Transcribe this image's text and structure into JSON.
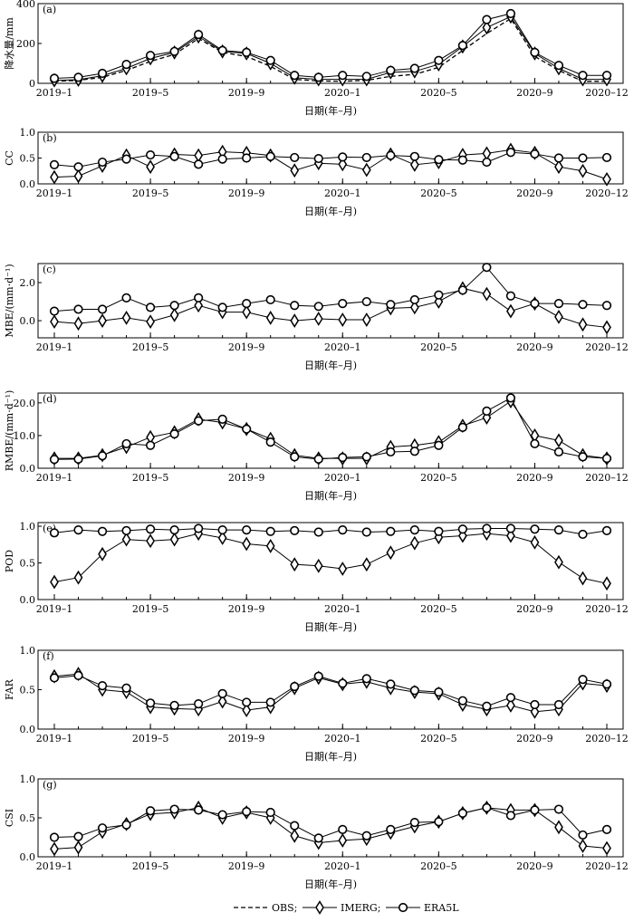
{
  "chart_data": {
    "type": "line",
    "x": [
      "2019-1",
      "2019-2",
      "2019-3",
      "2019-4",
      "2019-5",
      "2019-6",
      "2019-7",
      "2019-8",
      "2019-9",
      "2019-10",
      "2019-11",
      "2019-12",
      "2020-1",
      "2020-2",
      "2020-3",
      "2020-4",
      "2020-5",
      "2020-6",
      "2020-7",
      "2020-8",
      "2020-9",
      "2020-10",
      "2020-11",
      "2020-12"
    ],
    "x_tick_labels": [
      "2019–1",
      "2019–5",
      "2019–9",
      "2020–1",
      "2020–5",
      "2020–9",
      "2020–12"
    ],
    "legend": [
      "OBS;",
      "IMERG;",
      "ERA5L"
    ],
    "panels": [
      {
        "label": "(a)",
        "ylabel": "降水量/mm",
        "xlabel": "日期(年–月)",
        "ylim": [
          0,
          400
        ],
        "yticks": [
          "0",
          "200",
          "400"
        ],
        "series": [
          {
            "values": [
              10,
              15,
              30,
              65,
              110,
              145,
              225,
              155,
              135,
              85,
              20,
              12,
              10,
              15,
              35,
              45,
              80,
              165,
              250,
              325,
              135,
              65,
              10,
              10
            ]
          },
          {
            "values": [
              15,
              18,
              38,
              75,
              125,
              155,
              235,
              160,
              150,
              100,
              28,
              20,
              20,
              20,
              55,
              60,
              95,
              185,
              280,
              335,
              150,
              75,
              20,
              20
            ]
          },
          {
            "values": [
              25,
              30,
              50,
              95,
              140,
              160,
              245,
              165,
              155,
              115,
              40,
              30,
              40,
              35,
              65,
              75,
              115,
              190,
              320,
              350,
              155,
              90,
              40,
              40
            ]
          }
        ]
      },
      {
        "label": "(b)",
        "ylabel": "CC",
        "xlabel": "日期(年–月)",
        "ylim": [
          0,
          1.0
        ],
        "yticks": [
          "0.0",
          "0.5",
          "1.0"
        ],
        "series": [
          {
            "values": []
          },
          {
            "values": [
              0.13,
              0.15,
              0.35,
              0.55,
              0.33,
              0.57,
              0.55,
              0.62,
              0.6,
              0.55,
              0.26,
              0.4,
              0.38,
              0.27,
              0.57,
              0.37,
              0.42,
              0.56,
              0.59,
              0.66,
              0.6,
              0.33,
              0.25,
              0.09
            ]
          },
          {
            "values": [
              0.37,
              0.33,
              0.42,
              0.48,
              0.56,
              0.53,
              0.38,
              0.48,
              0.5,
              0.53,
              0.51,
              0.49,
              0.52,
              0.51,
              0.55,
              0.53,
              0.47,
              0.46,
              0.42,
              0.61,
              0.58,
              0.5,
              0.5,
              0.51
            ]
          }
        ]
      },
      {
        "label": "(c)",
        "ylabel": "MBE/(mm·d⁻¹)",
        "xlabel": "日期(年–月)",
        "ylim": [
          -0.9,
          3.0
        ],
        "yticks": [
          "0.0",
          "2.0"
        ],
        "series": [
          {
            "values": []
          },
          {
            "values": [
              -0.05,
              -0.15,
              0.0,
              0.15,
              -0.05,
              0.3,
              0.8,
              0.45,
              0.45,
              0.15,
              0.0,
              0.1,
              0.05,
              0.05,
              0.65,
              0.7,
              1.0,
              1.7,
              1.4,
              0.5,
              0.9,
              0.2,
              -0.2,
              -0.35
            ]
          },
          {
            "values": [
              0.5,
              0.6,
              0.6,
              1.2,
              0.7,
              0.8,
              1.2,
              0.7,
              0.9,
              1.1,
              0.8,
              0.75,
              0.9,
              1.0,
              0.85,
              1.1,
              1.35,
              1.6,
              2.8,
              1.3,
              0.9,
              0.9,
              0.85,
              0.8
            ]
          }
        ]
      },
      {
        "label": "(d)",
        "ylabel": "RMBE/(mm·d⁻¹)",
        "xlabel": "日期(年–月)",
        "ylim": [
          0,
          23
        ],
        "yticks": [
          "0.0",
          "10.0",
          "20.0"
        ],
        "series": [
          {
            "values": []
          },
          {
            "values": [
              3.0,
              3.0,
              4.0,
              6.5,
              9.5,
              11.0,
              15.0,
              14.0,
              12.0,
              9.0,
              4.0,
              3.0,
              3.0,
              3.0,
              6.5,
              7.0,
              8.0,
              13.0,
              15.5,
              20.5,
              10.0,
              8.5,
              4.0,
              3.0
            ]
          },
          {
            "values": [
              2.7,
              2.8,
              3.8,
              7.5,
              7.0,
              10.5,
              14.5,
              15.0,
              12.0,
              8.0,
              3.5,
              2.8,
              3.3,
              3.5,
              5.0,
              5.2,
              7.0,
              12.5,
              17.5,
              21.5,
              7.5,
              5.0,
              3.5,
              3.0
            ]
          }
        ]
      },
      {
        "label": "(e)",
        "ylabel": "POD",
        "xlabel": "日期(年–月)",
        "ylim": [
          0,
          1.05
        ],
        "yticks": [
          "0.0",
          "0.5",
          "1.0"
        ],
        "series": [
          {
            "values": []
          },
          {
            "values": [
              0.24,
              0.3,
              0.62,
              0.82,
              0.8,
              0.82,
              0.9,
              0.84,
              0.76,
              0.73,
              0.48,
              0.46,
              0.42,
              0.48,
              0.64,
              0.77,
              0.85,
              0.87,
              0.9,
              0.87,
              0.78,
              0.51,
              0.29,
              0.22
            ]
          },
          {
            "values": [
              0.91,
              0.95,
              0.93,
              0.94,
              0.96,
              0.95,
              0.97,
              0.95,
              0.95,
              0.93,
              0.94,
              0.92,
              0.95,
              0.92,
              0.93,
              0.95,
              0.93,
              0.96,
              0.97,
              0.97,
              0.96,
              0.95,
              0.89,
              0.94
            ]
          }
        ]
      },
      {
        "label": "(f)",
        "ylabel": "FAR",
        "xlabel": "日期(年–月)",
        "ylim": [
          0,
          1.0
        ],
        "yticks": [
          "0.0",
          "0.5",
          "1.0"
        ],
        "series": [
          {
            "values": []
          },
          {
            "values": [
              0.67,
              0.7,
              0.5,
              0.47,
              0.28,
              0.26,
              0.25,
              0.35,
              0.24,
              0.28,
              0.52,
              0.65,
              0.57,
              0.6,
              0.52,
              0.47,
              0.45,
              0.31,
              0.25,
              0.3,
              0.22,
              0.25,
              0.58,
              0.55
            ]
          },
          {
            "values": [
              0.65,
              0.68,
              0.55,
              0.52,
              0.33,
              0.3,
              0.32,
              0.45,
              0.34,
              0.34,
              0.54,
              0.67,
              0.58,
              0.64,
              0.57,
              0.49,
              0.47,
              0.36,
              0.29,
              0.4,
              0.31,
              0.31,
              0.63,
              0.57
            ]
          }
        ]
      },
      {
        "label": "(g)",
        "ylabel": "CSI",
        "xlabel": "日期(年–月)",
        "ylim": [
          0,
          1.0
        ],
        "yticks": [
          "0.0",
          "0.5",
          "1.0"
        ],
        "series": [
          {
            "values": []
          },
          {
            "values": [
              0.1,
              0.12,
              0.32,
              0.42,
              0.55,
              0.57,
              0.63,
              0.5,
              0.57,
              0.5,
              0.27,
              0.18,
              0.21,
              0.23,
              0.31,
              0.39,
              0.45,
              0.56,
              0.63,
              0.6,
              0.6,
              0.38,
              0.14,
              0.11
            ]
          },
          {
            "values": [
              0.25,
              0.26,
              0.37,
              0.41,
              0.59,
              0.61,
              0.6,
              0.54,
              0.58,
              0.57,
              0.4,
              0.24,
              0.35,
              0.27,
              0.35,
              0.44,
              0.45,
              0.56,
              0.63,
              0.53,
              0.6,
              0.61,
              0.28,
              0.35
            ]
          }
        ]
      }
    ]
  }
}
